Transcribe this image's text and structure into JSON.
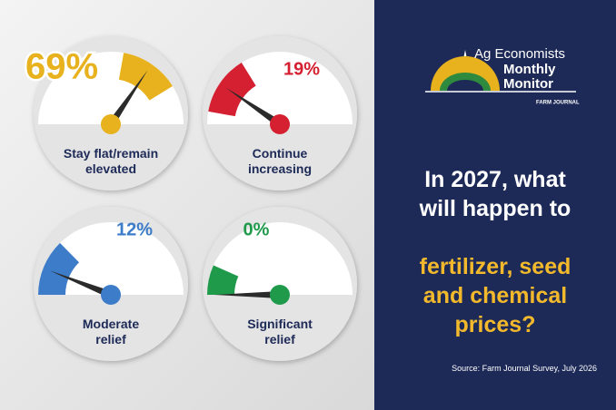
{
  "chart_data": {
    "type": "gauge",
    "categories": [
      "Stay flat/remain\nelevated",
      "Continue\nincreasing",
      "Moderate\nrelief",
      "Significant\nrelief"
    ],
    "values": [
      69,
      19,
      12,
      0
    ],
    "value_labels": [
      "69%",
      "19%",
      "12%",
      "0%"
    ],
    "colors": [
      "#e8b21e",
      "#d42030",
      "#3d7cc9",
      "#1f9a4a"
    ]
  },
  "logo": {
    "line1": "Ag Economists",
    "line2": "Monthly",
    "line3": "Monitor",
    "brand": "FARM JOURNAL"
  },
  "question": {
    "lead": "In 2027, what\nwill happen to",
    "highlight": "fertilizer, seed\nand chemical\nprices?"
  },
  "source": "Source: Farm Journal Survey, July 2026"
}
